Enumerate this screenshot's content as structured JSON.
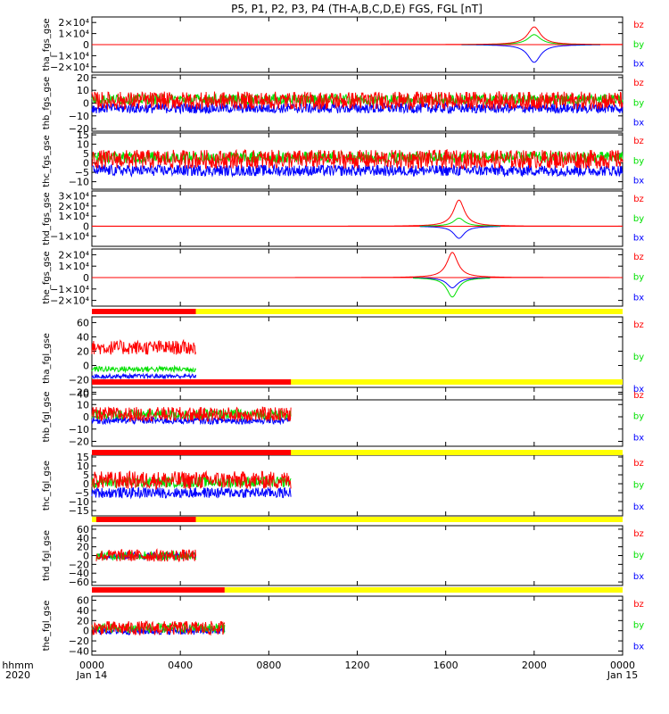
{
  "title": "P5, P1, P2, P3, P4 (TH-A,B,C,D,E) FGS, FGL [nT]",
  "x_axis": {
    "row1_label": "hhmm",
    "row2_label": "2020",
    "ticks": [
      {
        "hour": 0,
        "label": "0000",
        "sub": "Jan 14"
      },
      {
        "hour": 4,
        "label": "0400",
        "sub": ""
      },
      {
        "hour": 8,
        "label": "0800",
        "sub": ""
      },
      {
        "hour": 12,
        "label": "1200",
        "sub": ""
      },
      {
        "hour": 16,
        "label": "1600",
        "sub": ""
      },
      {
        "hour": 20,
        "label": "2000",
        "sub": ""
      },
      {
        "hour": 24,
        "label": "0000",
        "sub": "Jan 15"
      }
    ]
  },
  "colors": {
    "bx": "#0000ff",
    "by": "#00e000",
    "bz": "#ff0000",
    "bar_on": "#ff0000",
    "bar_off": "#ffff00",
    "axis": "#000000"
  },
  "legend": [
    "bz",
    "by",
    "bx"
  ],
  "chart_data": [
    {
      "type": "line",
      "ylabel": "tha_fgs_gse",
      "ylim": [
        -25000,
        25000
      ],
      "yticks": [
        {
          "v": 20000,
          "label": "2×10⁴"
        },
        {
          "v": 10000,
          "label": "1×10⁴"
        },
        {
          "v": 0,
          "label": "0"
        },
        {
          "v": -10000,
          "label": "−1×10⁴"
        },
        {
          "v": -20000,
          "label": "−2×10⁴"
        }
      ],
      "series": [
        {
          "name": "bz",
          "color": "#ff0000"
        },
        {
          "name": "by",
          "color": "#00e000"
        },
        {
          "name": "bx",
          "color": "#0000ff"
        }
      ],
      "data_range_hours": [
        0,
        24
      ],
      "events": [
        {
          "center": 20.0,
          "bz": 16000,
          "by": 9000,
          "bx": -16000,
          "width": 0.7,
          "span": [
            16.7,
            23.0
          ]
        }
      ],
      "noise": {
        "bz": 0,
        "by": 0,
        "bx": 0
      },
      "baseline": {
        "bz": 0,
        "by": 0,
        "bx": 0
      }
    },
    {
      "type": "line",
      "ylabel": "thb_fgs_gse",
      "ylim": [
        -22,
        22
      ],
      "yticks": [
        {
          "v": 20,
          "label": "20"
        },
        {
          "v": 10,
          "label": "10"
        },
        {
          "v": 0,
          "label": "0"
        },
        {
          "v": -10,
          "label": "−10"
        },
        {
          "v": -20,
          "label": "−20"
        }
      ],
      "series": [
        {
          "name": "bz",
          "color": "#ff0000"
        },
        {
          "name": "by",
          "color": "#00e000"
        },
        {
          "name": "bx",
          "color": "#0000ff"
        }
      ],
      "data_range_hours": [
        0,
        24
      ],
      "events": [],
      "noise": {
        "bz": 7,
        "by": 4,
        "bx": 4
      },
      "baseline": {
        "bz": 2,
        "by": 3,
        "bx": -4
      }
    },
    {
      "type": "line",
      "ylabel": "thc_fgs_gse",
      "ylim": [
        -14,
        16
      ],
      "yticks": [
        {
          "v": 15,
          "label": "15"
        },
        {
          "v": 10,
          "label": "10"
        },
        {
          "v": 5,
          "label": "5"
        },
        {
          "v": 0,
          "label": "0"
        },
        {
          "v": -5,
          "label": "−5"
        },
        {
          "v": -10,
          "label": "−10"
        }
      ],
      "series": [
        {
          "name": "bz",
          "color": "#ff0000"
        },
        {
          "name": "by",
          "color": "#00e000"
        },
        {
          "name": "bx",
          "color": "#0000ff"
        }
      ],
      "data_range_hours": [
        0,
        24
      ],
      "events": [],
      "noise": {
        "bz": 5,
        "by": 3,
        "bx": 3
      },
      "baseline": {
        "bz": 2,
        "by": 3,
        "bx": -4
      }
    },
    {
      "type": "line",
      "ylabel": "thd_fgs_gse",
      "ylim": [
        -20000,
        35000
      ],
      "yticks": [
        {
          "v": 30000,
          "label": "3×10⁴"
        },
        {
          "v": 20000,
          "label": "2×10⁴"
        },
        {
          "v": 10000,
          "label": "1×10⁴"
        },
        {
          "v": 0,
          "label": "0"
        },
        {
          "v": -10000,
          "label": "−1×10⁴"
        }
      ],
      "series": [
        {
          "name": "bz",
          "color": "#ff0000"
        },
        {
          "name": "by",
          "color": "#00e000"
        },
        {
          "name": "bx",
          "color": "#0000ff"
        }
      ],
      "data_range_hours": [
        0,
        24
      ],
      "events": [
        {
          "center": 16.6,
          "bz": 26000,
          "by": 8000,
          "bx": -12000,
          "width": 0.6,
          "span": [
            14.8,
            18.5
          ]
        }
      ],
      "noise": {
        "bz": 0,
        "by": 0,
        "bx": 0
      },
      "baseline": {
        "bz": 0,
        "by": 0,
        "bx": 0
      }
    },
    {
      "type": "line",
      "ylabel": "the_fgs_gse",
      "ylim": [
        -25000,
        25000
      ],
      "yticks": [
        {
          "v": 20000,
          "label": "2×10⁴"
        },
        {
          "v": 10000,
          "label": "1×10⁴"
        },
        {
          "v": 0,
          "label": "0"
        },
        {
          "v": -10000,
          "label": "−1×10⁴"
        },
        {
          "v": -20000,
          "label": "−2×10⁴"
        }
      ],
      "series": [
        {
          "name": "bz",
          "color": "#ff0000"
        },
        {
          "name": "by",
          "color": "#00e000"
        },
        {
          "name": "bx",
          "color": "#0000ff"
        }
      ],
      "data_range_hours": [
        0,
        24
      ],
      "events": [
        {
          "center": 16.3,
          "bz": 22000,
          "by": -17000,
          "bx": -9000,
          "width": 0.6,
          "span": [
            14.5,
            18.0
          ]
        }
      ],
      "noise": {
        "bz": 0,
        "by": 0,
        "bx": 0
      },
      "baseline": {
        "bz": 0,
        "by": 0,
        "bx": 0
      }
    },
    {
      "type": "line",
      "ylabel": "tha_fgl_gse",
      "ylim": [
        -48,
        68
      ],
      "yticks": [
        {
          "v": 60,
          "label": "60"
        },
        {
          "v": 40,
          "label": "40"
        },
        {
          "v": 20,
          "label": "20"
        },
        {
          "v": 0,
          "label": "0"
        },
        {
          "v": -20,
          "label": "−20"
        },
        {
          "v": -40,
          "label": "−40"
        }
      ],
      "series": [
        {
          "name": "bz",
          "color": "#ff0000"
        },
        {
          "name": "by",
          "color": "#00e000"
        },
        {
          "name": "bx",
          "color": "#0000ff"
        }
      ],
      "data_range_hours": [
        0,
        4.7
      ],
      "bar_on_until": 4.7,
      "events": [],
      "noise": {
        "bz": 10,
        "by": 4,
        "bx": 3
      },
      "baseline": {
        "bz": 25,
        "by": -5,
        "bx": -15
      }
    },
    {
      "type": "line",
      "ylabel": "thb_fgl_gse",
      "ylim": [
        -24,
        24
      ],
      "yticks": [
        {
          "v": 20,
          "label": "20"
        },
        {
          "v": 10,
          "label": "10"
        },
        {
          "v": 0,
          "label": "0"
        },
        {
          "v": -10,
          "label": "−10"
        },
        {
          "v": -20,
          "label": "−20"
        }
      ],
      "series": [
        {
          "name": "bz",
          "color": "#ff0000"
        },
        {
          "name": "by",
          "color": "#00e000"
        },
        {
          "name": "bx",
          "color": "#0000ff"
        }
      ],
      "data_range_hours": [
        0,
        9.0
      ],
      "bar_on_until": 9.0,
      "events": [],
      "noise": {
        "bz": 6,
        "by": 4,
        "bx": 3
      },
      "baseline": {
        "bz": 2,
        "by": 2,
        "bx": -3
      }
    },
    {
      "type": "line",
      "ylabel": "thc_fgl_gse",
      "ylim": [
        -18,
        16
      ],
      "yticks": [
        {
          "v": 15,
          "label": "15"
        },
        {
          "v": 10,
          "label": "10"
        },
        {
          "v": 5,
          "label": "5"
        },
        {
          "v": 0,
          "label": "0"
        },
        {
          "v": -5,
          "label": "−5"
        },
        {
          "v": -10,
          "label": "−10"
        },
        {
          "v": -15,
          "label": "−15"
        }
      ],
      "series": [
        {
          "name": "bz",
          "color": "#ff0000"
        },
        {
          "name": "by",
          "color": "#00e000"
        },
        {
          "name": "bx",
          "color": "#0000ff"
        }
      ],
      "data_range_hours": [
        0,
        9.0
      ],
      "bar_on_until": 9.0,
      "events": [],
      "noise": {
        "bz": 5,
        "by": 3,
        "bx": 3
      },
      "baseline": {
        "bz": 2,
        "by": 1,
        "bx": -5
      }
    },
    {
      "type": "line",
      "ylabel": "thd_fgl_gse",
      "ylim": [
        -68,
        68
      ],
      "yticks": [
        {
          "v": 60,
          "label": "60"
        },
        {
          "v": 40,
          "label": "40"
        },
        {
          "v": 20,
          "label": "20"
        },
        {
          "v": 0,
          "label": "0"
        },
        {
          "v": -20,
          "label": "−20"
        },
        {
          "v": -40,
          "label": "−40"
        },
        {
          "v": -60,
          "label": "−60"
        }
      ],
      "series": [
        {
          "name": "bz",
          "color": "#ff0000"
        },
        {
          "name": "by",
          "color": "#00e000"
        },
        {
          "name": "bx",
          "color": "#0000ff"
        }
      ],
      "data_range_hours": [
        0.2,
        4.7
      ],
      "bar_on_from": 0.2,
      "bar_on_until": 4.7,
      "events": [],
      "noise": {
        "bz": 14,
        "by": 10,
        "bx": 8
      },
      "baseline": {
        "bz": 0,
        "by": 0,
        "bx": 0
      }
    },
    {
      "type": "line",
      "ylabel": "the_fgl_gse",
      "ylim": [
        -48,
        68
      ],
      "yticks": [
        {
          "v": 60,
          "label": "60"
        },
        {
          "v": 40,
          "label": "40"
        },
        {
          "v": 20,
          "label": "20"
        },
        {
          "v": 0,
          "label": "0"
        },
        {
          "v": -20,
          "label": "−20"
        },
        {
          "v": -40,
          "label": "−40"
        }
      ],
      "series": [
        {
          "name": "bz",
          "color": "#ff0000"
        },
        {
          "name": "by",
          "color": "#00e000"
        },
        {
          "name": "bx",
          "color": "#0000ff"
        }
      ],
      "data_range_hours": [
        0,
        6.0
      ],
      "bar_on_until": 6.0,
      "events": [],
      "noise": {
        "bz": 14,
        "by": 10,
        "bx": 8
      },
      "baseline": {
        "bz": 5,
        "by": 5,
        "bx": 0
      }
    }
  ]
}
